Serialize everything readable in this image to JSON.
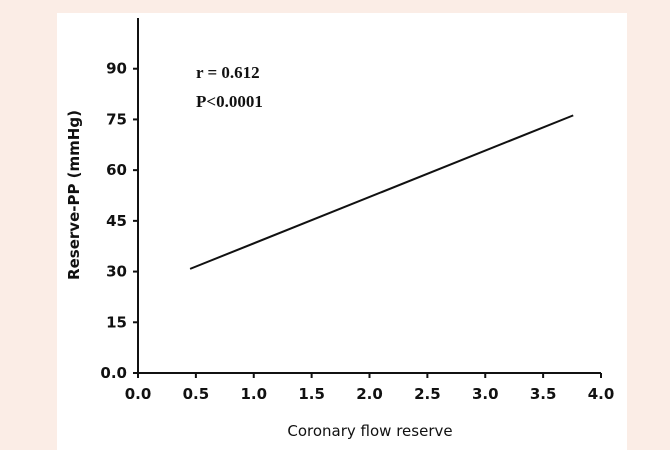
{
  "colors": {
    "background": "#fbede6",
    "panel": "#ffffff",
    "ink": "#111111"
  },
  "chart_data": {
    "type": "line",
    "xlabel": "Coronary flow reserve",
    "ylabel": "Reserve-PP (mmHg)",
    "xlim": [
      0.0,
      4.0
    ],
    "ylim": [
      0.0,
      105
    ],
    "x_ticks": [
      "0.0",
      "0.5",
      "1.0",
      "1.5",
      "2.0",
      "2.5",
      "3.0",
      "3.5",
      "4.0"
    ],
    "y_ticks": [
      "0.0",
      "15",
      "30",
      "45",
      "60",
      "75",
      "90"
    ],
    "series": [
      {
        "x": [
          0.45,
          3.76
        ],
        "y": [
          30.8,
          76.2
        ]
      }
    ],
    "annotations": [
      "r = 0.612",
      "P<0.0001"
    ],
    "grid": false
  }
}
